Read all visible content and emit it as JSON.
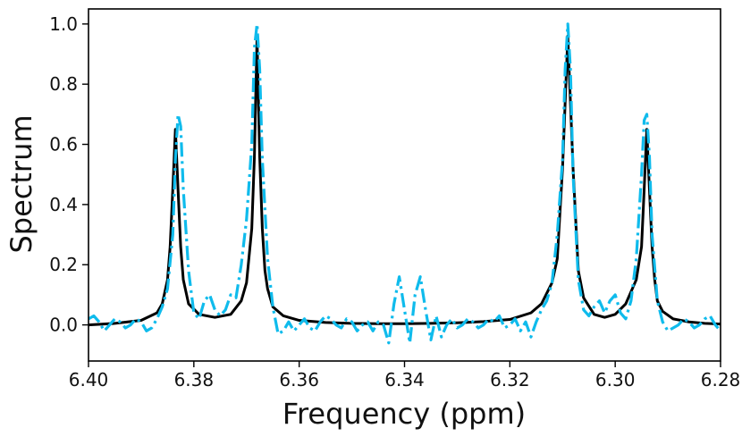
{
  "chart_data": {
    "type": "line",
    "title": "",
    "xlabel": "Frequency (ppm)",
    "ylabel": "Spectrum",
    "xlim": [
      6.4,
      6.28
    ],
    "ylim": [
      -0.12,
      1.05
    ],
    "x_reversed": true,
    "grid": false,
    "legend": "none",
    "xticks": [
      6.4,
      6.38,
      6.36,
      6.34,
      6.32,
      6.3,
      6.28
    ],
    "xtick_labels": [
      "6.40",
      "6.38",
      "6.36",
      "6.34",
      "6.32",
      "6.30",
      "6.28"
    ],
    "yticks": [
      0.0,
      0.2,
      0.4,
      0.6,
      0.8,
      1.0
    ],
    "ytick_labels": [
      "0.0",
      "0.2",
      "0.4",
      "0.6",
      "0.8",
      "1.0"
    ],
    "series": [
      {
        "style": "solid",
        "color": "#000000",
        "x": [
          6.4,
          6.395,
          6.39,
          6.387,
          6.386,
          6.385,
          6.3845,
          6.384,
          6.3835,
          6.383,
          6.3825,
          6.382,
          6.381,
          6.379,
          6.376,
          6.373,
          6.371,
          6.37,
          6.369,
          6.3685,
          6.368,
          6.3675,
          6.367,
          6.3665,
          6.366,
          6.365,
          6.363,
          6.36,
          6.355,
          6.35,
          6.345,
          6.34,
          6.335,
          6.33,
          6.325,
          6.32,
          6.316,
          6.314,
          6.312,
          6.311,
          6.31,
          6.3095,
          6.309,
          6.3085,
          6.308,
          6.307,
          6.306,
          6.304,
          6.302,
          6.3,
          6.298,
          6.296,
          6.295,
          6.2945,
          6.294,
          6.2935,
          6.293,
          6.2925,
          6.292,
          6.291,
          6.289,
          6.286,
          6.283,
          6.28
        ],
        "y": [
          0.0,
          0.005,
          0.015,
          0.04,
          0.07,
          0.15,
          0.26,
          0.45,
          0.65,
          0.45,
          0.26,
          0.15,
          0.07,
          0.035,
          0.025,
          0.035,
          0.08,
          0.14,
          0.32,
          0.56,
          0.96,
          0.56,
          0.32,
          0.18,
          0.12,
          0.06,
          0.03,
          0.015,
          0.008,
          0.005,
          0.004,
          0.004,
          0.005,
          0.007,
          0.011,
          0.018,
          0.04,
          0.07,
          0.14,
          0.22,
          0.52,
          0.74,
          0.96,
          0.74,
          0.52,
          0.18,
          0.09,
          0.035,
          0.025,
          0.035,
          0.07,
          0.15,
          0.26,
          0.45,
          0.65,
          0.45,
          0.26,
          0.15,
          0.08,
          0.045,
          0.02,
          0.01,
          0.005,
          0.003
        ]
      },
      {
        "style": "dashdot",
        "color": "#0fbbec",
        "x": [
          6.4,
          6.399,
          6.398,
          6.397,
          6.396,
          6.395,
          6.394,
          6.393,
          6.392,
          6.391,
          6.39,
          6.389,
          6.388,
          6.387,
          6.386,
          6.385,
          6.384,
          6.3835,
          6.383,
          6.3825,
          6.382,
          6.381,
          6.38,
          6.379,
          6.378,
          6.377,
          6.376,
          6.375,
          6.374,
          6.373,
          6.372,
          6.371,
          6.37,
          6.369,
          6.3685,
          6.368,
          6.3675,
          6.367,
          6.366,
          6.365,
          6.364,
          6.363,
          6.362,
          6.361,
          6.36,
          6.359,
          6.358,
          6.357,
          6.356,
          6.355,
          6.354,
          6.353,
          6.352,
          6.351,
          6.35,
          6.349,
          6.348,
          6.347,
          6.346,
          6.345,
          6.344,
          6.343,
          6.342,
          6.341,
          6.34,
          6.339,
          6.338,
          6.337,
          6.336,
          6.335,
          6.334,
          6.333,
          6.332,
          6.331,
          6.33,
          6.329,
          6.328,
          6.327,
          6.326,
          6.325,
          6.324,
          6.323,
          6.322,
          6.321,
          6.32,
          6.319,
          6.318,
          6.317,
          6.316,
          6.315,
          6.314,
          6.313,
          6.312,
          6.311,
          6.31,
          6.3095,
          6.309,
          6.3085,
          6.308,
          6.307,
          6.306,
          6.305,
          6.304,
          6.303,
          6.302,
          6.301,
          6.3,
          6.299,
          6.298,
          6.297,
          6.296,
          6.295,
          6.2945,
          6.294,
          6.2935,
          6.293,
          6.292,
          6.291,
          6.29,
          6.289,
          6.288,
          6.287,
          6.286,
          6.285,
          6.284,
          6.283,
          6.282,
          6.281,
          6.28
        ],
        "y": [
          0.02,
          0.03,
          0.01,
          -0.02,
          0.0,
          0.02,
          0.01,
          -0.01,
          0.0,
          0.02,
          0.01,
          -0.02,
          -0.01,
          0.02,
          0.06,
          0.12,
          0.3,
          0.55,
          0.7,
          0.66,
          0.45,
          0.18,
          0.04,
          0.02,
          0.08,
          0.1,
          0.05,
          0.03,
          0.05,
          0.1,
          0.09,
          0.2,
          0.35,
          0.6,
          0.92,
          1.0,
          0.85,
          0.55,
          0.22,
          0.06,
          -0.03,
          -0.02,
          0.01,
          -0.02,
          0.0,
          0.02,
          -0.01,
          -0.02,
          0.01,
          0.03,
          0.02,
          0.0,
          -0.01,
          0.02,
          0.01,
          -0.02,
          0.0,
          0.01,
          -0.02,
          0.01,
          0.0,
          -0.06,
          0.07,
          0.16,
          0.05,
          -0.06,
          0.1,
          0.16,
          0.05,
          -0.05,
          0.03,
          -0.04,
          0.0,
          0.02,
          -0.01,
          0.0,
          0.02,
          0.01,
          -0.01,
          0.0,
          0.02,
          0.01,
          0.03,
          -0.01,
          0.0,
          0.02,
          -0.02,
          0.01,
          -0.04,
          0.01,
          0.05,
          0.08,
          0.14,
          0.3,
          0.55,
          0.85,
          1.0,
          0.85,
          0.5,
          0.15,
          0.05,
          0.03,
          0.06,
          0.08,
          0.04,
          0.08,
          0.1,
          0.04,
          0.02,
          0.08,
          0.22,
          0.5,
          0.68,
          0.7,
          0.56,
          0.3,
          0.08,
          0.01,
          -0.02,
          -0.01,
          0.0,
          0.02,
          0.01,
          -0.01,
          0.0,
          0.02,
          0.03,
          0.0,
          -0.02
        ]
      }
    ]
  }
}
